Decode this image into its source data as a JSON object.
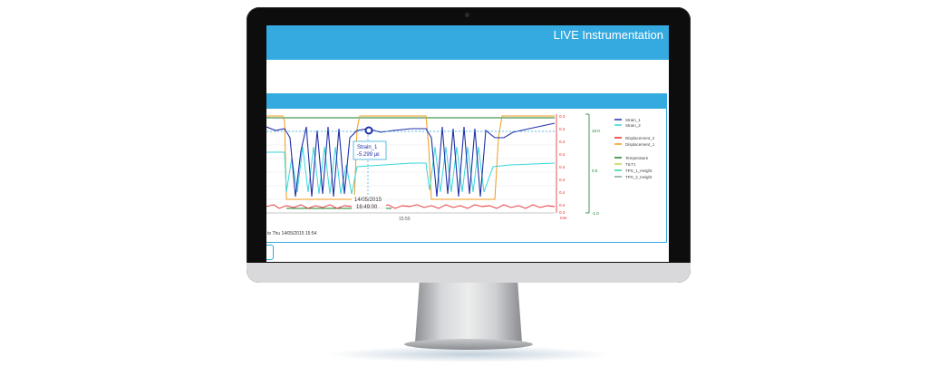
{
  "app": {
    "title": "LIVE Instrumentation"
  },
  "tooltip": {
    "series": "Strain_1",
    "value": "-5.299 µε"
  },
  "crosshair": {
    "date": "14/05/2015",
    "time": "16:49:00"
  },
  "x_axis": {
    "tick": "15:50"
  },
  "right_axis_red": {
    "unit": "mm",
    "ticks": [
      "0.4",
      "0.4",
      "0.4",
      "0.4",
      "0.4",
      "0.4",
      "0.4",
      "0.4",
      "0.4"
    ]
  },
  "right_axis_green": {
    "ticks": [
      "10.0",
      "0.0",
      "-1.0"
    ]
  },
  "legend": {
    "group1": [
      {
        "name": "Strain_1",
        "color": "#1f2fa8"
      },
      {
        "name": "Strain_2",
        "color": "#37d6db"
      }
    ],
    "group2": [
      {
        "name": "Displacement_2",
        "color": "#e2262b"
      },
      {
        "name": "Displacement_1",
        "color": "#f09a1c"
      }
    ],
    "group3": [
      {
        "name": "Temperature",
        "color": "#1a7d28"
      },
      {
        "name": "TILT1",
        "color": "#b7d94a"
      },
      {
        "name": "TPS_1_Height",
        "color": "#2fd6a8"
      },
      {
        "name": "TPS_2_Height",
        "color": "#7fa0a0"
      }
    ]
  },
  "range_text": "to Thu 14/05/2015 15:54",
  "colors": {
    "accent": "#35aae0",
    "strain1": "#1f2fa8",
    "strain2": "#37d6db",
    "disp2": "#e2262b",
    "disp1": "#f09a1c",
    "temp": "#1a7d28"
  }
}
